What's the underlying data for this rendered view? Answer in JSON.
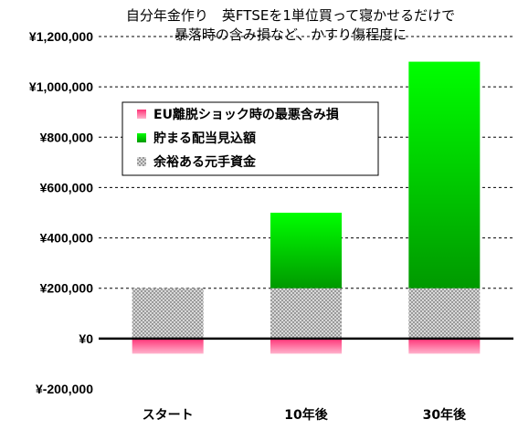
{
  "chart_data": {
    "type": "bar",
    "stacked": true,
    "title": [
      "自分年金作り　英FTSEを1単位買って寝かせるだけで",
      "暴落時の含み損など、かすり傷程度に"
    ],
    "xlabel": "",
    "ylabel": "",
    "categories": [
      "スタート",
      "10年後",
      "30年後"
    ],
    "ylim": [
      -200000,
      1200000
    ],
    "yticks": [
      -200000,
      0,
      200000,
      400000,
      600000,
      800000,
      1000000,
      1200000
    ],
    "ytick_labels": [
      "¥-200,000",
      "¥0",
      "¥200,000",
      "¥400,000",
      "¥600,000",
      "¥800,000",
      "¥1,000,000",
      "¥1,200,000"
    ],
    "grid": true,
    "legend_position": "upper-left",
    "series": [
      {
        "name": "EU離脱ショック時の最悪含み損",
        "values": [
          -60000,
          -60000,
          -60000
        ],
        "color": "#ff6699"
      },
      {
        "name": "貯まる配当見込額",
        "values": [
          0,
          300000,
          900000
        ],
        "color": "#00cc00"
      },
      {
        "name": "余裕ある元手資金",
        "values": [
          200000,
          200000,
          200000
        ],
        "color": "#b0b0b0"
      }
    ]
  }
}
